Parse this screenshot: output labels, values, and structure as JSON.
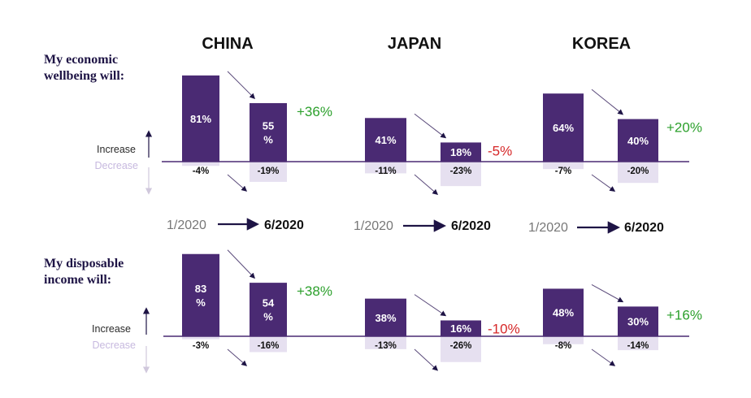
{
  "colors": {
    "positive_bar": "#4a2a73",
    "negative_bar": "#e6e0f0",
    "baseline": "#4a2a73",
    "change_up": "#2ca02c",
    "change_down": "#d62728",
    "decrease_label": "#c7b9df"
  },
  "periods": {
    "from": "1/2020",
    "to": "6/2020"
  },
  "legend": {
    "increase": "Increase",
    "decrease": "Decrease"
  },
  "chart_data": {
    "type": "bar",
    "countries": [
      "CHINA",
      "JAPAN",
      "KOREA"
    ],
    "period_labels": [
      "1/2020",
      "6/2020"
    ],
    "rows": [
      {
        "title": "My economic wellbeing will:",
        "title_lines": [
          "My economic",
          "wellbeing will:"
        ],
        "groups": [
          {
            "country": "CHINA",
            "increase": [
              81,
              55
            ],
            "decrease": [
              -4,
              -19
            ],
            "increase_labels": [
              "81%",
              "55\n%"
            ],
            "decrease_labels": [
              "-4%",
              "-19%"
            ],
            "change_label": "+36%",
            "change_dir": "up"
          },
          {
            "country": "JAPAN",
            "increase": [
              41,
              18
            ],
            "decrease": [
              -11,
              -23
            ],
            "increase_labels": [
              "41%",
              "18%"
            ],
            "decrease_labels": [
              "-11%",
              "-23%"
            ],
            "change_label": "-5%",
            "change_dir": "down"
          },
          {
            "country": "KOREA",
            "increase": [
              64,
              40
            ],
            "decrease": [
              -7,
              -20
            ],
            "increase_labels": [
              "64%",
              "40%"
            ],
            "decrease_labels": [
              "-7%",
              "-20%"
            ],
            "change_label": "+20%",
            "change_dir": "up"
          }
        ]
      },
      {
        "title": "My disposable income will:",
        "title_lines": [
          "My disposable",
          "income will:"
        ],
        "groups": [
          {
            "country": "CHINA",
            "increase": [
              83,
              54
            ],
            "decrease": [
              -3,
              -16
            ],
            "increase_labels": [
              "83\n%",
              "54\n%"
            ],
            "decrease_labels": [
              "-3%",
              "-16%"
            ],
            "change_label": "+38%",
            "change_dir": "up"
          },
          {
            "country": "JAPAN",
            "increase": [
              38,
              16
            ],
            "decrease": [
              -13,
              -26
            ],
            "increase_labels": [
              "38%",
              "16%"
            ],
            "decrease_labels": [
              "-13%",
              "-26%"
            ],
            "change_label": "-10%",
            "change_dir": "down"
          },
          {
            "country": "KOREA",
            "increase": [
              48,
              30
            ],
            "decrease": [
              -8,
              -14
            ],
            "increase_labels": [
              "48%",
              "30%"
            ],
            "decrease_labels": [
              "-8%",
              "-14%"
            ],
            "change_label": "+16%",
            "change_dir": "up"
          }
        ]
      }
    ]
  }
}
